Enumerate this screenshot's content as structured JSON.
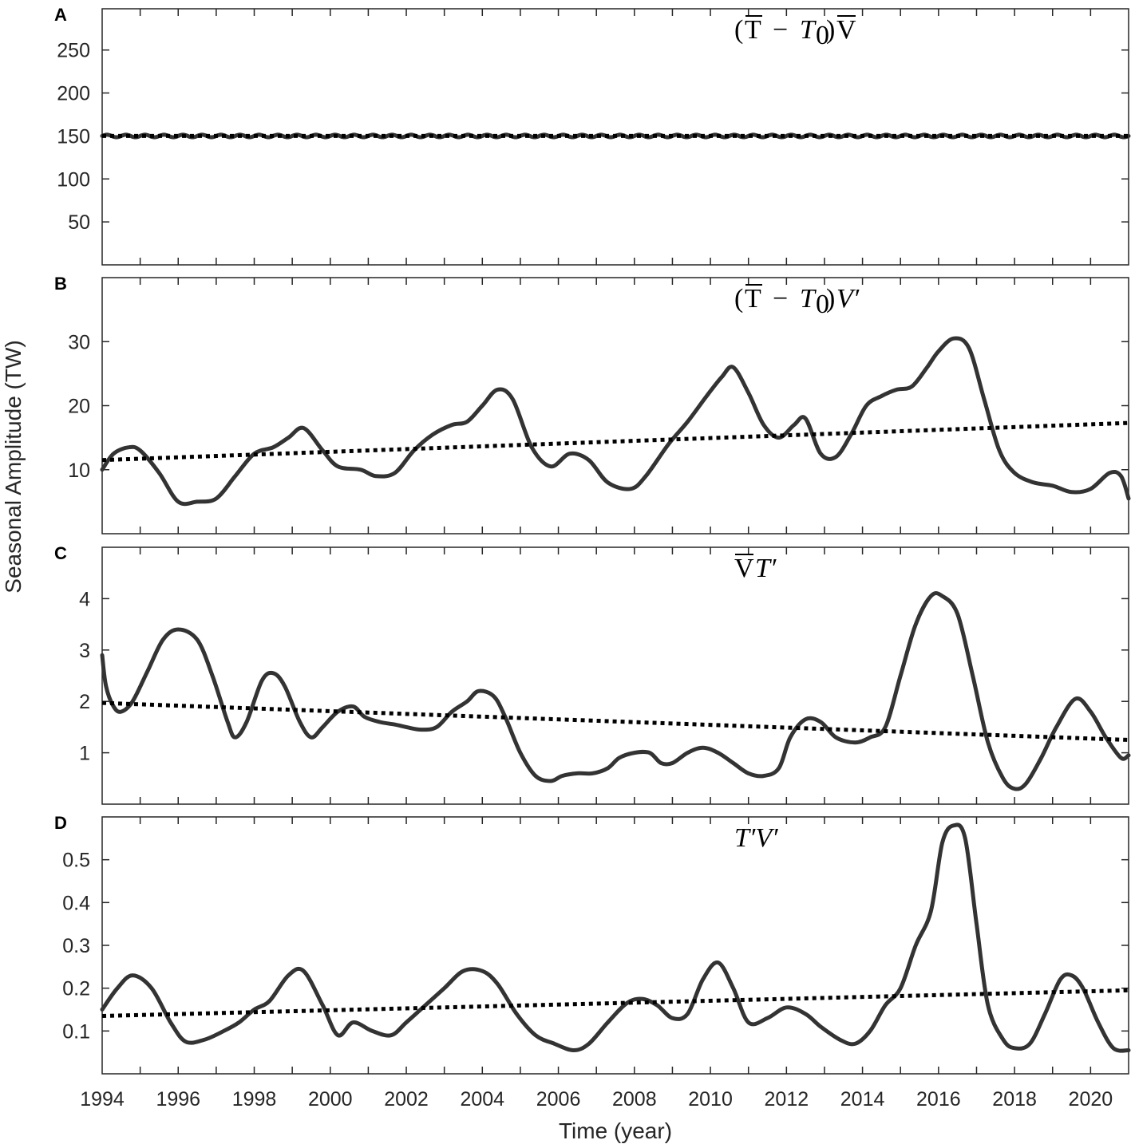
{
  "figure": {
    "ylabel": "Seasonal Amplitude (TW)",
    "xlabel": "Time (year)",
    "x_tick_labels": [
      "1994",
      "1996",
      "1998",
      "2000",
      "2002",
      "2004",
      "2006",
      "2008",
      "2010",
      "2012",
      "2014",
      "2016",
      "2018",
      "2020"
    ]
  },
  "panels": [
    {
      "letter": "A",
      "title": "(T̄ − T₀)V̄",
      "y_tick_labels": [
        "250",
        "200",
        "150",
        "100",
        "50"
      ]
    },
    {
      "letter": "B",
      "title": "(T̄ − T₀)V′",
      "y_tick_labels": [
        "30",
        "20",
        "10"
      ]
    },
    {
      "letter": "C",
      "title": "V̄T′",
      "y_tick_labels": [
        "4",
        "3",
        "2",
        "1"
      ]
    },
    {
      "letter": "D",
      "title": "T′V′",
      "y_tick_labels": [
        "0.5",
        "0.4",
        "0.3",
        "0.2",
        "0.1"
      ]
    }
  ],
  "chart_data": [
    {
      "type": "line",
      "panel": "A",
      "title": "(T̄ − T₀)V̄",
      "xlabel": "Time (year)",
      "ylabel": "Seasonal Amplitude (TW)",
      "xlim": [
        1994,
        2021
      ],
      "ylim": [
        0,
        298
      ],
      "y_ticks": [
        50,
        100,
        150,
        200,
        250
      ],
      "series": [
        {
          "name": "(T̄ − T₀)V̄",
          "style": "solid-with-small-ripple",
          "x": [
            1994,
            2021
          ],
          "values": [
            150,
            150
          ]
        },
        {
          "name": "linear trend",
          "style": "dotted",
          "x": [
            1994,
            2021
          ],
          "values": [
            150,
            150
          ]
        }
      ]
    },
    {
      "type": "line",
      "panel": "B",
      "title": "(T̄ − T₀)V′",
      "xlim": [
        1994,
        2021
      ],
      "ylim": [
        0,
        40
      ],
      "y_ticks": [
        10,
        20,
        30
      ],
      "series": [
        {
          "name": "(T̄ − T₀)V′",
          "x": [
            1994.0,
            1994.3,
            1994.7,
            1995.0,
            1995.5,
            1996.0,
            1996.5,
            1997.0,
            1997.5,
            1998.0,
            1998.5,
            1998.9,
            1999.3,
            1999.8,
            2000.2,
            2000.8,
            2001.2,
            2001.7,
            2002.2,
            2002.7,
            2003.2,
            2003.6,
            2004.0,
            2004.4,
            2004.8,
            2005.3,
            2005.8,
            2006.3,
            2006.8,
            2007.3,
            2007.9,
            2008.3,
            2008.9,
            2009.4,
            2009.9,
            2010.3,
            2010.6,
            2011.0,
            2011.4,
            2011.8,
            2012.2,
            2012.5,
            2012.9,
            2013.3,
            2013.7,
            2014.1,
            2014.5,
            2014.9,
            2015.3,
            2015.7,
            2016.0,
            2016.4,
            2016.8,
            2017.2,
            2017.6,
            2018.0,
            2018.5,
            2019.0,
            2019.5,
            2020.0,
            2020.5,
            2020.8,
            2021.0
          ],
          "values": [
            10,
            12.5,
            13.5,
            13,
            9.5,
            5,
            5,
            5.5,
            9,
            12.5,
            13.5,
            15,
            16.5,
            13,
            10.5,
            10,
            9,
            9.5,
            13,
            15.5,
            17,
            17.5,
            20,
            22.5,
            21,
            13.5,
            10.5,
            12.5,
            11.5,
            8,
            7,
            9,
            14,
            17.5,
            21.5,
            24.5,
            26,
            22,
            17,
            15,
            17,
            18,
            12.5,
            12,
            15.5,
            20,
            21.5,
            22.5,
            23,
            26,
            28.5,
            30.5,
            29,
            21,
            13,
            9.5,
            8,
            7.5,
            6.5,
            7,
            9.5,
            9,
            5.5
          ]
        },
        {
          "name": "linear trend",
          "style": "dotted",
          "x": [
            1994,
            2021
          ],
          "values": [
            11.5,
            17.3
          ]
        }
      ]
    },
    {
      "type": "line",
      "panel": "C",
      "title": "V̄T′",
      "xlim": [
        1994,
        2021
      ],
      "ylim": [
        0,
        5
      ],
      "y_ticks": [
        1,
        2,
        3,
        4
      ],
      "series": [
        {
          "name": "V̄T′",
          "x": [
            1994.0,
            1994.1,
            1994.3,
            1994.5,
            1994.8,
            1995.2,
            1995.6,
            1996.0,
            1996.5,
            1996.9,
            1997.3,
            1997.5,
            1997.8,
            1998.2,
            1998.5,
            1998.8,
            1999.2,
            1999.5,
            1999.8,
            2000.2,
            2000.6,
            2000.9,
            2001.3,
            2001.7,
            2002.0,
            2002.4,
            2002.8,
            2003.2,
            2003.6,
            2003.9,
            2004.3,
            2004.6,
            2005.0,
            2005.4,
            2005.8,
            2006.1,
            2006.5,
            2006.9,
            2007.3,
            2007.6,
            2008.0,
            2008.4,
            2008.7,
            2009.0,
            2009.4,
            2009.8,
            2010.2,
            2010.6,
            2011.0,
            2011.4,
            2011.8,
            2012.1,
            2012.5,
            2012.9,
            2013.3,
            2013.8,
            2014.2,
            2014.6,
            2015.0,
            2015.4,
            2015.8,
            2016.1,
            2016.5,
            2016.9,
            2017.3,
            2017.7,
            2018.0,
            2018.3,
            2018.7,
            2019.1,
            2019.6,
            2020.0,
            2020.4,
            2020.8,
            2021.0
          ],
          "values": [
            2.9,
            2.3,
            1.9,
            1.8,
            2.0,
            2.6,
            3.2,
            3.4,
            3.2,
            2.5,
            1.6,
            1.3,
            1.6,
            2.4,
            2.55,
            2.3,
            1.6,
            1.3,
            1.5,
            1.8,
            1.9,
            1.7,
            1.6,
            1.55,
            1.5,
            1.45,
            1.5,
            1.8,
            2.0,
            2.2,
            2.1,
            1.7,
            1.0,
            0.55,
            0.45,
            0.55,
            0.6,
            0.6,
            0.7,
            0.9,
            1.0,
            1.0,
            0.8,
            0.8,
            1.0,
            1.1,
            1.0,
            0.8,
            0.6,
            0.55,
            0.7,
            1.3,
            1.65,
            1.6,
            1.3,
            1.2,
            1.3,
            1.5,
            2.5,
            3.5,
            4.05,
            4.05,
            3.7,
            2.5,
            1.2,
            0.5,
            0.3,
            0.4,
            0.9,
            1.5,
            2.05,
            1.8,
            1.3,
            0.9,
            0.95
          ]
        },
        {
          "name": "linear trend",
          "style": "dotted",
          "x": [
            1994,
            2021
          ],
          "values": [
            1.97,
            1.25
          ]
        }
      ]
    },
    {
      "type": "line",
      "panel": "D",
      "title": "T′V′",
      "xlabel": "Time (year)",
      "xlim": [
        1994,
        2021
      ],
      "ylim": [
        0,
        0.6
      ],
      "y_ticks": [
        0.1,
        0.2,
        0.3,
        0.4,
        0.5
      ],
      "series": [
        {
          "name": "T′V′",
          "x": [
            1994.0,
            1994.4,
            1994.8,
            1995.3,
            1995.8,
            1996.2,
            1996.7,
            1997.2,
            1997.6,
            1998.0,
            1998.4,
            1998.9,
            1999.3,
            1999.8,
            2000.2,
            2000.6,
            2001.1,
            2001.6,
            2002.0,
            2002.5,
            2003.0,
            2003.5,
            2004.0,
            2004.4,
            2004.9,
            2005.4,
            2005.9,
            2006.4,
            2006.8,
            2007.3,
            2007.8,
            2008.2,
            2008.6,
            2009.0,
            2009.4,
            2009.8,
            2010.2,
            2010.6,
            2011.0,
            2011.5,
            2012.0,
            2012.5,
            2012.9,
            2013.4,
            2013.8,
            2014.2,
            2014.6,
            2015.0,
            2015.4,
            2015.8,
            2016.1,
            2016.4,
            2016.7,
            2017.0,
            2017.3,
            2017.7,
            2018.0,
            2018.4,
            2018.8,
            2019.2,
            2019.5,
            2019.8,
            2020.2,
            2020.6,
            2021.0
          ],
          "values": [
            0.15,
            0.2,
            0.23,
            0.2,
            0.12,
            0.075,
            0.08,
            0.1,
            0.12,
            0.15,
            0.17,
            0.23,
            0.24,
            0.16,
            0.09,
            0.12,
            0.1,
            0.09,
            0.12,
            0.16,
            0.2,
            0.24,
            0.24,
            0.21,
            0.14,
            0.09,
            0.07,
            0.055,
            0.07,
            0.12,
            0.165,
            0.175,
            0.16,
            0.13,
            0.14,
            0.22,
            0.26,
            0.2,
            0.12,
            0.13,
            0.155,
            0.14,
            0.11,
            0.08,
            0.07,
            0.1,
            0.16,
            0.2,
            0.3,
            0.38,
            0.54,
            0.58,
            0.55,
            0.35,
            0.16,
            0.08,
            0.06,
            0.07,
            0.14,
            0.22,
            0.23,
            0.2,
            0.12,
            0.06,
            0.055
          ]
        },
        {
          "name": "linear trend",
          "style": "dotted",
          "x": [
            1994,
            2021
          ],
          "values": [
            0.135,
            0.195
          ]
        }
      ]
    }
  ]
}
